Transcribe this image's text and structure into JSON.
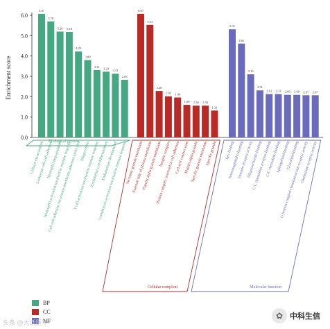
{
  "chart_data": {
    "type": "bar",
    "ylabel": "Enrichment score",
    "ylim": [
      0,
      6.0
    ],
    "yticks": [
      "0.0",
      "1.0",
      "2.0",
      "3.0",
      "4.0",
      "5.0",
      "6.0"
    ],
    "groups": [
      {
        "key": "BP",
        "name": "Biological process",
        "color": "#45a882",
        "categories": [
          "Cellular extravasation",
          "Leukocyte cell-cell adhesion",
          "Neutrophil degranulation",
          "Neutrophil activation involved in immune response",
          "Cell-cell adhesion via plasma-membrane adhesion molecules",
          "Phagocytosis",
          "T cell activation involved in immune response",
          "Endothelial cell differentiation",
          "Endothelium development",
          "Lymphocyte activation involved in immune response"
        ],
        "values": [
          6.07,
          5.7,
          5.2,
          5.18,
          4.22,
          3.8,
          3.31,
          3.23,
          3.13,
          2.83
        ],
        "labels": [
          "6.07",
          "5.70",
          "5.20",
          "5.18",
          "4.22",
          "3.80",
          "3.31",
          "3.23",
          "3.13",
          "2.83"
        ]
      },
      {
        "key": "CC",
        "name": "Cellular complent",
        "color": "#b82a26",
        "categories": [
          "Secretory granule membrane",
          "External side of plasma membrane",
          "Platelet alpha granule membrane",
          "Integrin complex",
          "Protein complex involved in cell adhesion",
          "Cell-cell contact zone",
          "Platelet alpha granule",
          "Specific granule membrane",
          "Specific granule"
        ],
        "values": [
          6.07,
          5.53,
          2.28,
          2.02,
          1.96,
          1.6,
          1.56,
          1.56,
          1.32
        ],
        "labels": [
          "6.07",
          "5.53",
          "2.28",
          "2.02",
          "1.96",
          "1.60",
          "1.56",
          "1.56",
          "1.32"
        ]
      },
      {
        "key": "MF",
        "name": "Molecular function",
        "color": "#6a6bbd",
        "categories": [
          "IgG binding",
          "Immunoglobulin binding",
          "Immune receptor activity",
          "Oligosaccharide binding",
          "C-C chemokine receptor binding",
          "C-C chemokine binding",
          "Sphingolipid binding",
          "Glycolipid binding",
          "G protein-coupled chemoattractant receptor activity",
          "Chemokine receptor activity"
        ],
        "values": [
          5.31,
          4.61,
          3.1,
          2.31,
          2.13,
          2.13,
          2.09,
          2.09,
          2.07,
          2.07
        ],
        "labels": [
          "5.31",
          "4.61",
          "3.10",
          "2.31",
          "2.13",
          "2.13",
          "2.09",
          "2.09",
          "2.07",
          "2.07"
        ]
      }
    ],
    "legend": {
      "placement": "bottom-left",
      "items": [
        "BP",
        "CC",
        "MF"
      ]
    }
  },
  "watermark": {
    "left_text": "头条 @大话医学",
    "right_text": "中科生信"
  }
}
